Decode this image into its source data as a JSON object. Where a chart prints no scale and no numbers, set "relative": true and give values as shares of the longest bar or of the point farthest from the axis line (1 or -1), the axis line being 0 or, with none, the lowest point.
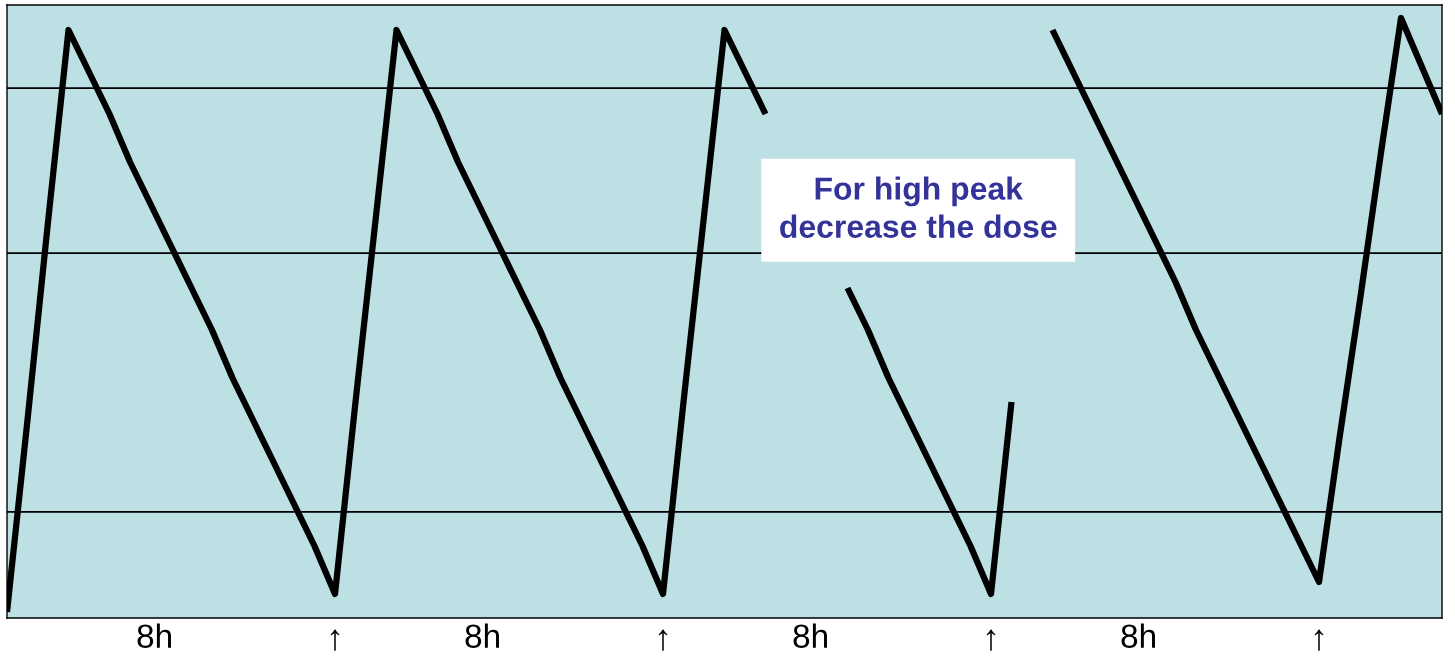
{
  "chart_data": {
    "type": "line",
    "relative": true,
    "categories": [
      null,
      null,
      null,
      null,
      null,
      null,
      null,
      null,
      null,
      null,
      null,
      null,
      null,
      null,
      null,
      null,
      null,
      null,
      null,
      null,
      null,
      null,
      null,
      null,
      null,
      null,
      null,
      null,
      null,
      null,
      null,
      null,
      null,
      null,
      null,
      null,
      null,
      null,
      null,
      null,
      null,
      null,
      null,
      null,
      null,
      null,
      null,
      null,
      null,
      null,
      null,
      null,
      null,
      null,
      null,
      null,
      null,
      null,
      null,
      null,
      null,
      null,
      null,
      null,
      null,
      null,
      null,
      null,
      null,
      null,
      null
    ],
    "series": [
      {
        "color": "#000000",
        "values": [
          0.01,
          0.33,
          0.66,
          0.98,
          0.91,
          0.84,
          0.76,
          0.69,
          0.62,
          0.55,
          0.48,
          0.4,
          0.33,
          0.26,
          0.19,
          0.12,
          0.04,
          0.36,
          0.67,
          0.98,
          0.91,
          0.84,
          0.76,
          0.69,
          0.62,
          0.55,
          0.48,
          0.4,
          0.33,
          0.26,
          0.19,
          0.12,
          0.04,
          0.36,
          0.67,
          0.98,
          0.91,
          0.84,
          null,
          null,
          null,
          0.55,
          0.48,
          0.4,
          0.33,
          0.26,
          0.19,
          0.12,
          0.04,
          0.36,
          null,
          0.98,
          0.91,
          0.84,
          0.77,
          0.7,
          0.63,
          0.56,
          0.48,
          0.41,
          0.34,
          0.27,
          0.2,
          0.13,
          0.06,
          0.3,
          0.53,
          0.77,
          1.0,
          0.92,
          0.84
        ]
      }
    ],
    "ref_lines": [
      {
        "axis": "y",
        "value": 0.883,
        "color": "#000000"
      },
      {
        "axis": "y",
        "value": 0.608,
        "color": "#000000"
      },
      {
        "axis": "y",
        "value": 0.177,
        "color": "#000000"
      }
    ],
    "annotations": [
      "For high peak\ndecrease the dose",
      "8h",
      "↑",
      "8h",
      "↑",
      "8h",
      "↑",
      "8h",
      "↑"
    ],
    "grid": false,
    "legend": false,
    "marker": "none",
    "line_style": "solid"
  }
}
